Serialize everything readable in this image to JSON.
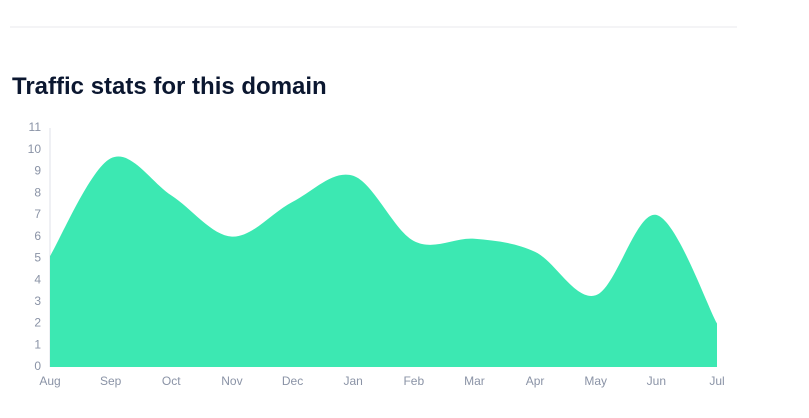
{
  "chart_data": {
    "type": "area",
    "title": "Traffic stats for this domain",
    "categories": [
      "Aug",
      "Sep",
      "Oct",
      "Nov",
      "Dec",
      "Jan",
      "Feb",
      "Mar",
      "Apr",
      "May",
      "Jun",
      "Jul"
    ],
    "values": [
      5.1,
      9.6,
      7.9,
      6.0,
      7.6,
      8.8,
      5.8,
      5.9,
      5.3,
      3.3,
      7.0,
      2.0
    ],
    "color": "#3ce8b2",
    "ylim": [
      0,
      11
    ],
    "yticks": [
      0,
      1,
      2,
      3,
      4,
      5,
      6,
      7,
      8,
      9,
      10,
      11
    ],
    "grid": false
  }
}
